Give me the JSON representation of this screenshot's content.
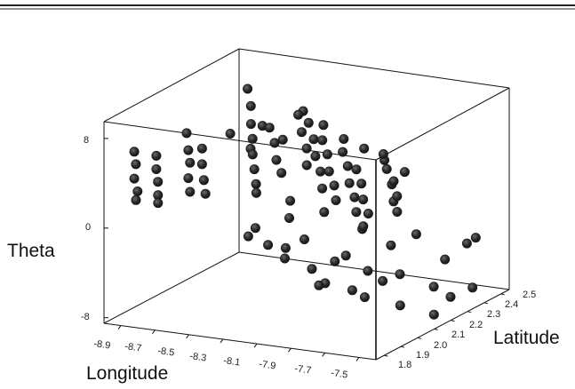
{
  "chart_data": {
    "type": "scatter",
    "xlabel": "Longitude",
    "ylabel": "Latitude",
    "zlabel": "Theta",
    "xlim": [
      -9.0,
      -7.4
    ],
    "ylim": [
      1.75,
      2.55
    ],
    "zlim": [
      -8.5,
      9.5
    ],
    "x_ticks": [
      "-8.9",
      "-8.7",
      "-8.5",
      "-8.3",
      "-8.1",
      "-7.9",
      "-7.7",
      "-7.5"
    ],
    "y_ticks": [
      "1.8",
      "1.9",
      "2.0",
      "2.1",
      "2.2",
      "2.3",
      "2.4",
      "2.5"
    ],
    "z_ticks": [
      "8",
      "0",
      "-8"
    ],
    "marker_color": "#1e1e1e",
    "points": [
      [
        -8.92,
        1.85,
        6.2
      ],
      [
        -8.92,
        1.86,
        5.0
      ],
      [
        -8.92,
        1.85,
        3.8
      ],
      [
        -8.91,
        1.86,
        2.6
      ],
      [
        -8.91,
        1.85,
        1.9
      ],
      [
        -8.8,
        1.86,
        6.0
      ],
      [
        -8.8,
        1.86,
        4.8
      ],
      [
        -8.8,
        1.87,
        3.6
      ],
      [
        -8.79,
        1.86,
        2.5
      ],
      [
        -8.79,
        1.86,
        1.8
      ],
      [
        -8.71,
        1.95,
        7.5
      ],
      [
        -8.7,
        1.95,
        6.0
      ],
      [
        -8.7,
        1.96,
        4.8
      ],
      [
        -8.7,
        1.95,
        3.5
      ],
      [
        -8.69,
        1.95,
        2.3
      ],
      [
        -8.55,
        1.88,
        7.0
      ],
      [
        -8.55,
        1.88,
        5.6
      ],
      [
        -8.54,
        1.88,
        4.2
      ],
      [
        -8.54,
        1.89,
        2.9
      ],
      [
        -8.42,
        2.02,
        11.5
      ],
      [
        -8.41,
        2.03,
        9.9
      ],
      [
        -8.4,
        2.02,
        8.4
      ],
      [
        -8.4,
        2.03,
        7.0
      ],
      [
        -8.39,
        2.02,
        5.7
      ],
      [
        -8.39,
        2.03,
        4.3
      ],
      [
        -8.38,
        2.03,
        3.0
      ],
      [
        -8.32,
        2.05,
        8.0
      ],
      [
        -8.3,
        2.06,
        6.6
      ],
      [
        -8.28,
        2.05,
        5.2
      ],
      [
        -8.26,
        2.06,
        4.0
      ],
      [
        -8.2,
        2.1,
        9.0
      ],
      [
        -8.18,
        2.1,
        7.5
      ],
      [
        -8.16,
        2.11,
        6.0
      ],
      [
        -8.15,
        2.1,
        4.6
      ],
      [
        -8.1,
        2.06,
        8.8
      ],
      [
        -8.08,
        2.07,
        7.3
      ],
      [
        -8.06,
        2.06,
        5.9
      ],
      [
        -8.04,
        2.07,
        4.5
      ],
      [
        -8.02,
        2.06,
        3.1
      ],
      [
        -7.98,
        2.02,
        7.8
      ],
      [
        -7.96,
        2.03,
        6.5
      ],
      [
        -7.94,
        2.02,
        5.1
      ],
      [
        -7.92,
        2.03,
        3.8
      ],
      [
        -7.9,
        2.02,
        2.6
      ],
      [
        -7.88,
        2.04,
        6.8
      ],
      [
        -7.86,
        2.05,
        5.5
      ],
      [
        -7.84,
        2.04,
        4.1
      ],
      [
        -7.82,
        2.05,
        2.8
      ],
      [
        -7.8,
        2.04,
        1.6
      ],
      [
        -7.76,
        2.0,
        5.8
      ],
      [
        -7.74,
        2.01,
        4.5
      ],
      [
        -7.72,
        2.0,
        3.2
      ],
      [
        -7.7,
        2.01,
        1.9
      ],
      [
        -7.66,
        2.06,
        6.9
      ],
      [
        -7.64,
        2.06,
        5.6
      ],
      [
        -7.62,
        2.07,
        4.2
      ],
      [
        -7.6,
        2.06,
        2.8
      ],
      [
        -7.56,
        2.02,
        5.0
      ],
      [
        -7.55,
        2.03,
        3.6
      ],
      [
        -7.54,
        2.02,
        2.3
      ],
      [
        -8.6,
        2.1,
        6.5
      ],
      [
        -8.5,
        2.12,
        5.2
      ],
      [
        -8.45,
        2.14,
        7.2
      ],
      [
        -8.35,
        2.16,
        6.0
      ],
      [
        -8.25,
        2.18,
        8.6
      ],
      [
        -8.15,
        2.2,
        7.4
      ],
      [
        -8.05,
        2.22,
        6.2
      ],
      [
        -7.95,
        2.24,
        5.4
      ],
      [
        -7.85,
        2.26,
        4.4
      ],
      [
        -7.75,
        2.28,
        3.4
      ],
      [
        -8.3,
        1.95,
        3.0
      ],
      [
        -8.12,
        1.97,
        2.5
      ],
      [
        -7.93,
        1.98,
        1.8
      ],
      [
        -7.68,
        1.96,
        1.2
      ],
      [
        -8.2,
        1.8,
        0.5
      ],
      [
        -8.0,
        1.82,
        -0.3
      ],
      [
        -7.88,
        1.81,
        0.8
      ],
      [
        -7.72,
        1.83,
        -1.0
      ],
      [
        -8.28,
        2.0,
        -2.0
      ],
      [
        -8.22,
        2.04,
        -3.4
      ],
      [
        -8.1,
        2.08,
        -4.4
      ],
      [
        -8.0,
        2.02,
        -5.2
      ],
      [
        -7.92,
        2.1,
        -3.0
      ],
      [
        -7.84,
        2.15,
        -4.6
      ],
      [
        -7.76,
        2.05,
        -6.0
      ],
      [
        -7.7,
        2.2,
        -5.0
      ],
      [
        -7.62,
        2.12,
        -7.0
      ],
      [
        -7.55,
        2.25,
        -6.2
      ],
      [
        -7.5,
        2.3,
        -7.4
      ],
      [
        -7.48,
        2.18,
        -8.0
      ],
      [
        -8.02,
        2.3,
        -2.4
      ],
      [
        -7.9,
        2.35,
        -4.0
      ],
      [
        -7.8,
        2.4,
        -3.2
      ],
      [
        -7.68,
        2.45,
        -5.6
      ],
      [
        -7.6,
        2.5,
        -4.4
      ],
      [
        -8.12,
        2.18,
        -6.5
      ],
      [
        -8.0,
        2.22,
        -7.2
      ],
      [
        -7.88,
        2.28,
        -6.6
      ],
      [
        -8.55,
        2.2,
        -2.6
      ],
      [
        -8.4,
        2.25,
        -1.8
      ],
      [
        -7.45,
        2.4,
        -2.8
      ],
      [
        -7.42,
        2.35,
        -6.8
      ]
    ]
  }
}
